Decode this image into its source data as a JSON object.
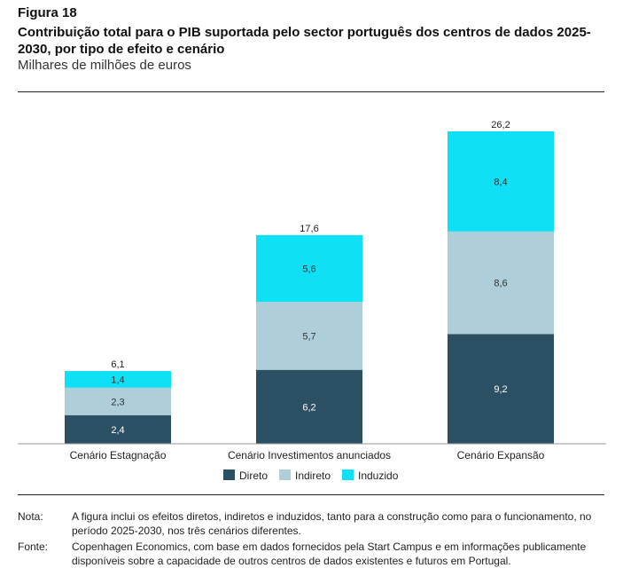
{
  "figure": {
    "label": "Figura 18",
    "title": "Contribuição total para o PIB suportada pelo sector português dos centros de dados 2025-2030, por tipo de efeito e cenário",
    "subtitle": "Milhares de milhões de euros"
  },
  "chart_data": {
    "type": "bar",
    "stacked": true,
    "categories": [
      "Cenário Estagnação",
      "Cenário Investimentos anunciados",
      "Cenário Expansão"
    ],
    "series": [
      {
        "name": "Direto",
        "values": [
          2.4,
          6.2,
          9.2
        ],
        "labels": [
          "2,4",
          "6,2",
          "9,2"
        ],
        "color": "#2b4f63",
        "text_color": "#ffffff"
      },
      {
        "name": "Indireto",
        "values": [
          2.3,
          5.7,
          8.6
        ],
        "labels": [
          "2,3",
          "5,7",
          "8,6"
        ],
        "color": "#aecfd9",
        "text_color": "#333333"
      },
      {
        "name": "Induzido",
        "values": [
          1.4,
          5.6,
          8.4
        ],
        "labels": [
          "1,4",
          "5,6",
          "8,4"
        ],
        "color": "#0fe0f5",
        "text_color": "#333333"
      }
    ],
    "totals": [
      6.1,
      17.6,
      26.2
    ],
    "total_labels": [
      "6,1",
      "17,6",
      "26,2"
    ],
    "ylim": [
      0,
      26.2
    ],
    "grid": false,
    "legend_position": "bottom"
  },
  "notes": [
    {
      "key": "Nota:",
      "text": "A figura inclui os efeitos diretos, indiretos e induzidos, tanto para a construção como para o funcionamento, no período 2025-2030, nos três cenários diferentes."
    },
    {
      "key": "Fonte:",
      "text": "Copenhagen Economics, com base em dados fornecidos pela Start Campus e em informações publicamente disponíveis sobre a capacidade de outros centros de dados existentes e futuros em Portugal."
    }
  ]
}
